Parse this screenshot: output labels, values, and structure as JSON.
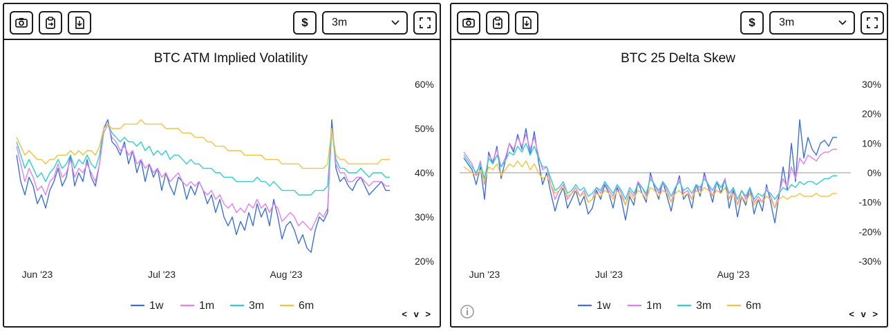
{
  "toolbar": {
    "currency_label": "$",
    "range_value": "3m",
    "icons": [
      "camera-icon",
      "clipboard-icon",
      "download-icon",
      "fullscreen-icon"
    ]
  },
  "panels": {
    "left": {
      "nav_label": "< v >"
    },
    "right": {
      "nav_label": "< v >"
    }
  },
  "colors": {
    "1w": "#3b6fdb",
    "1m": "#e57ef0",
    "3m": "#2bcfd0",
    "6m": "#f4c13b",
    "zero": "#aaaaaa"
  },
  "chart_data": [
    {
      "type": "line",
      "title": "BTC ATM Implied Volatility",
      "xlabel": "",
      "ylabel": "",
      "x_range": [
        0,
        90
      ],
      "ylim": [
        20,
        60
      ],
      "y_ticks": [
        20,
        30,
        40,
        50,
        60
      ],
      "y_tick_labels": [
        "20%",
        "30%",
        "40%",
        "50%",
        "60%"
      ],
      "x_ticks": [
        {
          "x": 5,
          "label": "Jun '23"
        },
        {
          "x": 35,
          "label": "Jul '23"
        },
        {
          "x": 65,
          "label": "Aug '23"
        }
      ],
      "zero_line": false,
      "legend": [
        "1w",
        "1m",
        "3m",
        "6m"
      ],
      "series": [
        {
          "name": "1w",
          "values": [
            44,
            38,
            35,
            39,
            37,
            33,
            35,
            32,
            36,
            38,
            41,
            37,
            39,
            44,
            37,
            40,
            38,
            43,
            39,
            37,
            42,
            50,
            52,
            47,
            46,
            44,
            47,
            42,
            45,
            40,
            43,
            38,
            42,
            39,
            41,
            36,
            40,
            37,
            35,
            39,
            38,
            34,
            37,
            35,
            38,
            36,
            33,
            35,
            31,
            34,
            30,
            28,
            30,
            26,
            29,
            27,
            31,
            28,
            33,
            30,
            32,
            28,
            34,
            30,
            25,
            28,
            29,
            27,
            24,
            26,
            23,
            22,
            27,
            30,
            29,
            31,
            52,
            41,
            38,
            39,
            37,
            36,
            38,
            39,
            37,
            35,
            36,
            37,
            38,
            36,
            36
          ]
        },
        {
          "name": "1m",
          "values": [
            46,
            42,
            38,
            41,
            39,
            36,
            37,
            35,
            38,
            39,
            42,
            39,
            40,
            43,
            39,
            41,
            40,
            42,
            40,
            38,
            42,
            49,
            51,
            48,
            47,
            45,
            46,
            44,
            45,
            42,
            43,
            41,
            42,
            40,
            41,
            39,
            40,
            38,
            39,
            40,
            38,
            37,
            38,
            37,
            38,
            36,
            35,
            36,
            34,
            35,
            33,
            32,
            33,
            31,
            32,
            31,
            33,
            32,
            34,
            32,
            33,
            31,
            33,
            32,
            29,
            30,
            31,
            30,
            28,
            29,
            28,
            27,
            29,
            31,
            30,
            32,
            50,
            42,
            40,
            40,
            38,
            38,
            39,
            39,
            38,
            37,
            38,
            38,
            38,
            37,
            37
          ]
        },
        {
          "name": "3m",
          "values": [
            47,
            44,
            41,
            43,
            41,
            39,
            40,
            38,
            40,
            41,
            43,
            41,
            42,
            44,
            41,
            43,
            42,
            44,
            42,
            41,
            44,
            50,
            51,
            49,
            48,
            47,
            48,
            47,
            47,
            46,
            47,
            45,
            46,
            44,
            45,
            44,
            45,
            43,
            44,
            44,
            43,
            42,
            43,
            42,
            42,
            41,
            41,
            41,
            40,
            40,
            39,
            39,
            39,
            38,
            38,
            38,
            38,
            38,
            39,
            38,
            38,
            37,
            38,
            37,
            36,
            36,
            36,
            36,
            35,
            35,
            35,
            35,
            36,
            36,
            36,
            37,
            50,
            43,
            41,
            41,
            40,
            40,
            40,
            41,
            40,
            39,
            40,
            40,
            40,
            39,
            39
          ]
        },
        {
          "name": "6m",
          "values": [
            48,
            46,
            44,
            45,
            44,
            43,
            43,
            42,
            43,
            43,
            44,
            44,
            44,
            45,
            44,
            45,
            44,
            45,
            45,
            44,
            46,
            50,
            51,
            50,
            50,
            50,
            51,
            51,
            51,
            51,
            52,
            51,
            51,
            51,
            51,
            51,
            50,
            50,
            50,
            50,
            49,
            49,
            49,
            48,
            48,
            48,
            47,
            47,
            46,
            46,
            46,
            45,
            45,
            45,
            45,
            44,
            44,
            44,
            44,
            44,
            43,
            43,
            43,
            43,
            42,
            42,
            42,
            42,
            42,
            41,
            41,
            41,
            41,
            41,
            41,
            42,
            50,
            44,
            43,
            43,
            42,
            42,
            42,
            42,
            42,
            42,
            42,
            42,
            43,
            43,
            43
          ]
        }
      ]
    },
    {
      "type": "line",
      "title": "BTC 25 Delta Skew",
      "xlabel": "",
      "ylabel": "",
      "x_range": [
        0,
        90
      ],
      "ylim": [
        -30,
        30
      ],
      "y_ticks": [
        -30,
        -20,
        -10,
        0,
        10,
        20,
        30
      ],
      "y_tick_labels": [
        "-30%",
        "-20%",
        "-10%",
        "0%",
        "10%",
        "20%",
        "30%"
      ],
      "x_ticks": [
        {
          "x": 5,
          "label": "Jun '23"
        },
        {
          "x": 35,
          "label": "Jul '23"
        },
        {
          "x": 65,
          "label": "Aug '23"
        }
      ],
      "zero_line": true,
      "legend": [
        "1w",
        "1m",
        "3m",
        "6m"
      ],
      "series": [
        {
          "name": "1w",
          "values": [
            5,
            3,
            1,
            -4,
            2,
            -9,
            7,
            3,
            9,
            -2,
            4,
            10,
            7,
            13,
            8,
            15,
            6,
            14,
            4,
            -4,
            0,
            -7,
            -13,
            -8,
            -5,
            -12,
            -9,
            -6,
            -11,
            -8,
            -14,
            -12,
            -6,
            -9,
            -4,
            -7,
            -12,
            -5,
            -9,
            -16,
            -8,
            -11,
            -3,
            -7,
            -10,
            0,
            -5,
            -9,
            -3,
            -8,
            -13,
            -6,
            -1,
            -9,
            -7,
            -12,
            -4,
            -8,
            0,
            -5,
            -10,
            -3,
            -7,
            -2,
            -12,
            -6,
            -15,
            -8,
            -11,
            -5,
            -14,
            -9,
            -13,
            -4,
            -10,
            -17,
            -8,
            2,
            -6,
            10,
            -3,
            18,
            5,
            12,
            8,
            6,
            10,
            11,
            9,
            12,
            12
          ]
        },
        {
          "name": "1m",
          "values": [
            7,
            5,
            3,
            -1,
            4,
            -4,
            6,
            4,
            8,
            2,
            5,
            10,
            8,
            12,
            9,
            13,
            8,
            12,
            6,
            1,
            2,
            -4,
            -9,
            -6,
            -4,
            -9,
            -7,
            -5,
            -8,
            -6,
            -10,
            -9,
            -5,
            -7,
            -3,
            -6,
            -8,
            -4,
            -7,
            -11,
            -6,
            -8,
            -3,
            -5,
            -8,
            -1,
            -4,
            -7,
            -3,
            -6,
            -10,
            -5,
            -2,
            -7,
            -6,
            -9,
            -4,
            -6,
            -1,
            -4,
            -8,
            -3,
            -5,
            -2,
            -9,
            -5,
            -11,
            -6,
            -9,
            -5,
            -10,
            -8,
            -10,
            -5,
            -8,
            -12,
            -7,
            -2,
            -5,
            2,
            -2,
            5,
            3,
            6,
            5,
            4,
            6,
            7,
            7,
            8,
            8
          ]
        },
        {
          "name": "3m",
          "values": [
            6,
            4,
            2,
            0,
            3,
            -2,
            5,
            3,
            6,
            2,
            4,
            7,
            6,
            9,
            7,
            10,
            6,
            9,
            5,
            2,
            2,
            -2,
            -6,
            -5,
            -3,
            -7,
            -6,
            -4,
            -6,
            -5,
            -8,
            -7,
            -5,
            -6,
            -3,
            -5,
            -7,
            -4,
            -6,
            -9,
            -5,
            -7,
            -4,
            -5,
            -7,
            -2,
            -4,
            -6,
            -3,
            -5,
            -8,
            -5,
            -3,
            -6,
            -5,
            -7,
            -4,
            -5,
            -2,
            -4,
            -6,
            -3,
            -5,
            -3,
            -7,
            -5,
            -9,
            -6,
            -8,
            -5,
            -9,
            -7,
            -8,
            -6,
            -7,
            -9,
            -7,
            -5,
            -6,
            -4,
            -5,
            -3,
            -4,
            -3,
            -3,
            -4,
            -3,
            -2,
            -2,
            -1,
            -1
          ]
        },
        {
          "name": "6m",
          "values": [
            2,
            1,
            0,
            -1,
            1,
            -3,
            2,
            1,
            3,
            -1,
            1,
            3,
            2,
            4,
            2,
            4,
            1,
            3,
            0,
            -2,
            -1,
            -4,
            -7,
            -6,
            -5,
            -8,
            -7,
            -6,
            -8,
            -7,
            -10,
            -9,
            -7,
            -8,
            -6,
            -7,
            -9,
            -6,
            -8,
            -11,
            -7,
            -9,
            -6,
            -7,
            -9,
            -5,
            -6,
            -8,
            -6,
            -7,
            -10,
            -7,
            -6,
            -8,
            -7,
            -9,
            -6,
            -7,
            -5,
            -6,
            -8,
            -6,
            -7,
            -5,
            -9,
            -7,
            -11,
            -8,
            -10,
            -7,
            -11,
            -9,
            -10,
            -8,
            -9,
            -12,
            -9,
            -8,
            -9,
            -8,
            -8,
            -7,
            -8,
            -8,
            -8,
            -7,
            -8,
            -8,
            -8,
            -7,
            -7
          ]
        }
      ]
    }
  ]
}
